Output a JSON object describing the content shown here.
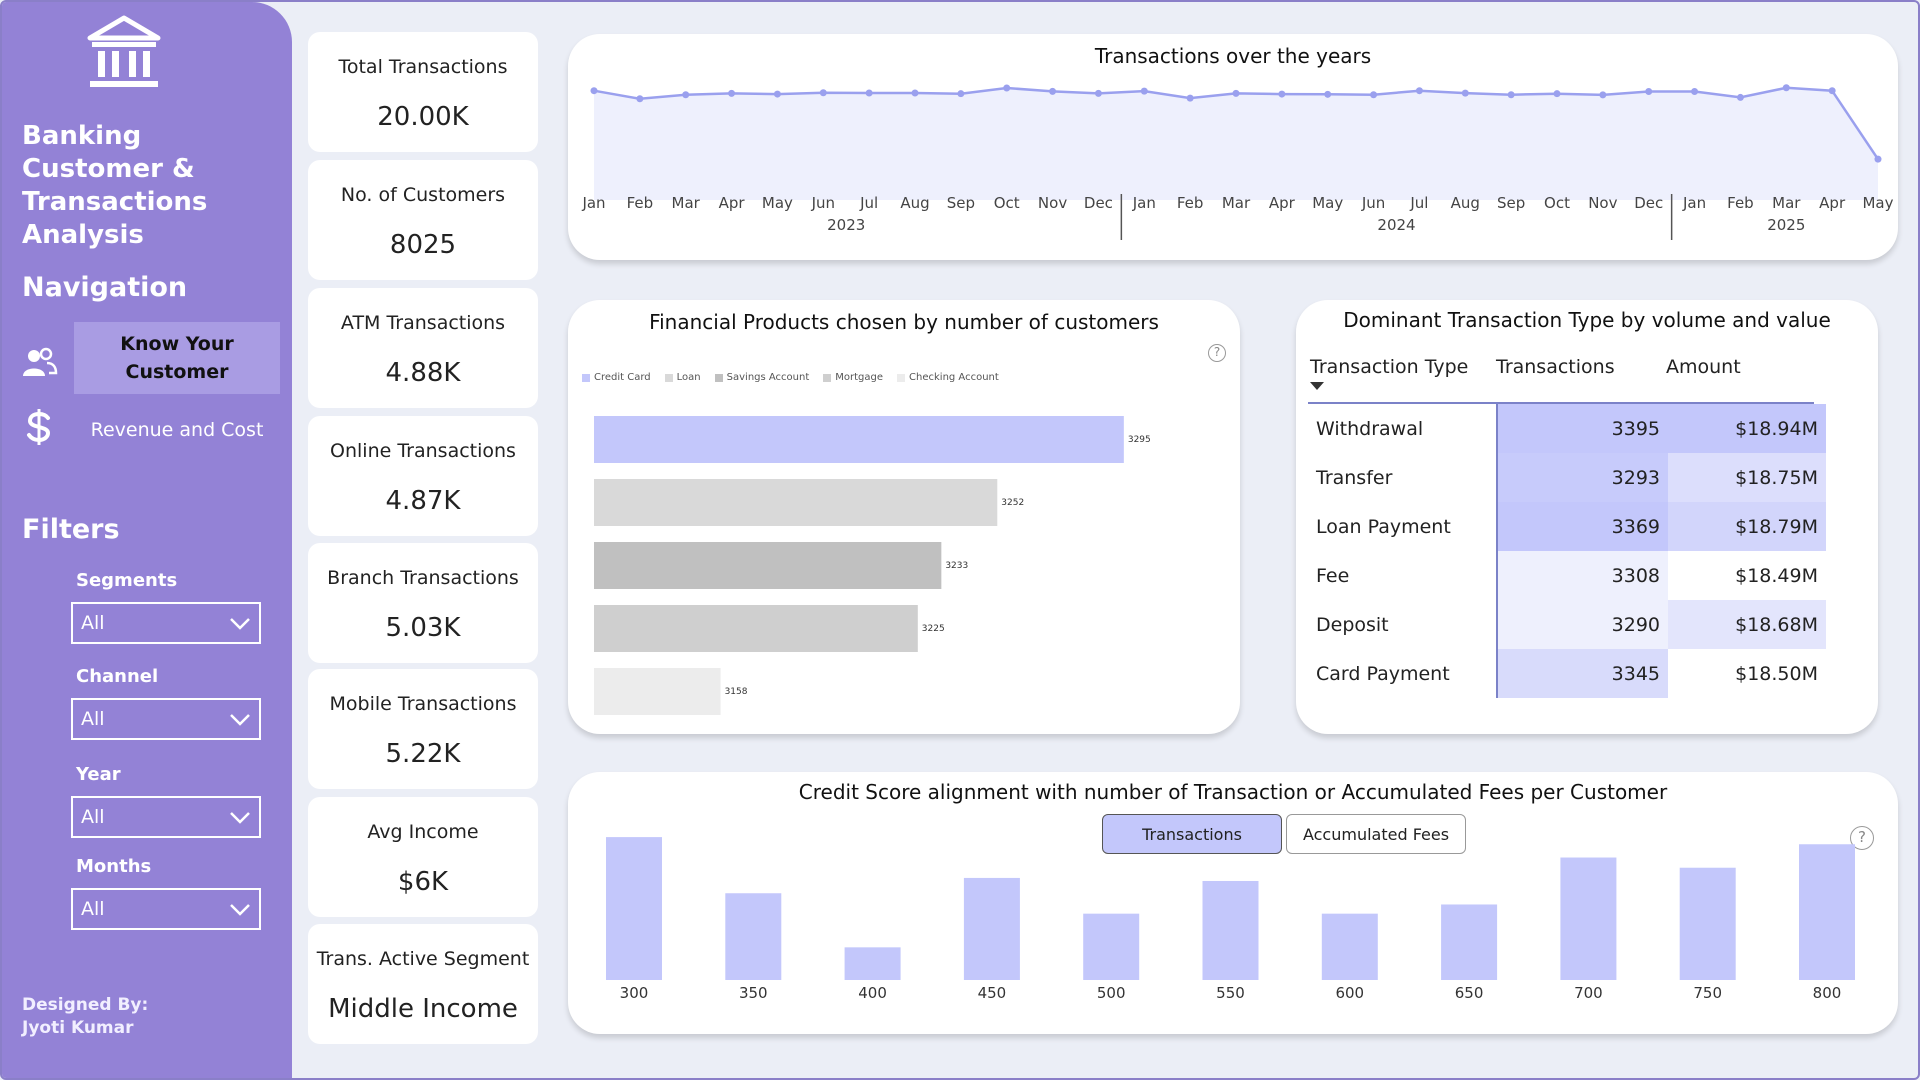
{
  "app": {
    "title": "Banking Customer & Transactions Analysis",
    "designed_by": "Designed By:",
    "designer": "Jyoti Kumar"
  },
  "nav": {
    "title": "Navigation",
    "items": [
      {
        "label": "Know Your Customer",
        "icon": "users-icon",
        "active": true
      },
      {
        "label": "Revenue and Cost",
        "icon": "dollar-icon",
        "active": false
      }
    ]
  },
  "filters": {
    "title": "Filters",
    "items": [
      {
        "label": "Segments",
        "value": "All"
      },
      {
        "label": "Channel",
        "value": "All"
      },
      {
        "label": "Year",
        "value": "All"
      },
      {
        "label": "Months",
        "value": "All"
      }
    ]
  },
  "kpis": [
    {
      "label": "Total Transactions",
      "value": "20.00K"
    },
    {
      "label": "No. of Customers",
      "value": "8025"
    },
    {
      "label": "ATM Transactions",
      "value": "4.88K"
    },
    {
      "label": "Online Transactions",
      "value": "4.87K"
    },
    {
      "label": "Branch Transactions",
      "value": "5.03K"
    },
    {
      "label": "Mobile Transactions",
      "value": "5.22K"
    },
    {
      "label": "Avg Income",
      "value": "$6K"
    },
    {
      "label": "Trans. Active Segment",
      "value": "Middle Income"
    }
  ],
  "colors": {
    "sidebar": "#9382d6",
    "accent": "#c3c7fb",
    "line": "#9aa0ee",
    "line_fill": "#eef0fd"
  },
  "chart_data": [
    {
      "type": "line",
      "title": "Transactions over the years",
      "x": [
        "Jan",
        "Feb",
        "Mar",
        "Apr",
        "May",
        "Jun",
        "Jul",
        "Aug",
        "Sep",
        "Oct",
        "Nov",
        "Dec",
        "Jan",
        "Feb",
        "Mar",
        "Apr",
        "May",
        "Jun",
        "Jul",
        "Aug",
        "Sep",
        "Oct",
        "Nov",
        "Dec",
        "Jan",
        "Feb",
        "Mar",
        "Apr",
        "May"
      ],
      "years": [
        {
          "label": "2023",
          "start": 0,
          "end": 11
        },
        {
          "label": "2024",
          "start": 12,
          "end": 23
        },
        {
          "label": "2025",
          "start": 24,
          "end": 28
        }
      ],
      "values": [
        710,
        650,
        680,
        690,
        685,
        695,
        693,
        693,
        688,
        730,
        705,
        690,
        707,
        655,
        690,
        685,
        683,
        680,
        710,
        692,
        680,
        688,
        679,
        704,
        704,
        660,
        732,
        710,
        200
      ],
      "ylim": [
        0,
        760
      ],
      "grid": false
    },
    {
      "type": "bar",
      "orientation": "horizontal",
      "title": "Financial Products chosen by number of customers",
      "legend": [
        "Credit Card",
        "Loan",
        "Savings Account",
        "Mortgage",
        "Checking Account"
      ],
      "legend_colors": [
        "#c3c7fb",
        "#d9d9d9",
        "#c0c0c0",
        "#cfcfcf",
        "#ececec"
      ],
      "values": [
        3295,
        3252,
        3233,
        3225,
        3158
      ],
      "data_labels": [
        "3295",
        "3252",
        "3233",
        "3225",
        "3158"
      ],
      "xlim": [
        3115,
        3310
      ],
      "legend_position": "top-left"
    },
    {
      "type": "table",
      "title": "Dominant Transaction Type by volume and value",
      "columns": [
        "Transaction Type",
        "Transactions",
        "Amount"
      ],
      "rows": [
        {
          "type": "Withdrawal",
          "transactions": "3395",
          "amount": "$18.94M",
          "tx_shade": "#c3c7fb",
          "amt_shade": "#c3c7fb"
        },
        {
          "type": "Transfer",
          "transactions": "3293",
          "amount": "$18.75M",
          "tx_shade": "#c7cbfb",
          "amt_shade": "#dcdefc"
        },
        {
          "type": "Loan Payment",
          "transactions": "3369",
          "amount": "$18.79M",
          "tx_shade": "#c3c7fb",
          "amt_shade": "#d2d5fb"
        },
        {
          "type": "Fee",
          "transactions": "3308",
          "amount": "$18.49M",
          "tx_shade": "#eef0fd",
          "amt_shade": "#ffffff"
        },
        {
          "type": "Deposit",
          "transactions": "3290",
          "amount": "$18.68M",
          "tx_shade": "#eef0fd",
          "amt_shade": "#e3e5fc"
        },
        {
          "type": "Card Payment",
          "transactions": "3345",
          "amount": "$18.50M",
          "tx_shade": "#d8dbfb",
          "amt_shade": "#ffffff"
        }
      ]
    },
    {
      "type": "bar",
      "title": "Credit Score alignment with number of Transaction or Accumulated Fees per Customer",
      "categories": [
        "300",
        "350",
        "400",
        "450",
        "500",
        "550",
        "600",
        "650",
        "700",
        "750",
        "800"
      ],
      "values": [
        140,
        85,
        32,
        100,
        65,
        97,
        65,
        74,
        120,
        110,
        133
      ],
      "ylim": [
        0,
        145
      ],
      "toggles": [
        {
          "label": "Transactions",
          "active": true
        },
        {
          "label": "Accumulated Fees",
          "active": false
        }
      ]
    }
  ]
}
